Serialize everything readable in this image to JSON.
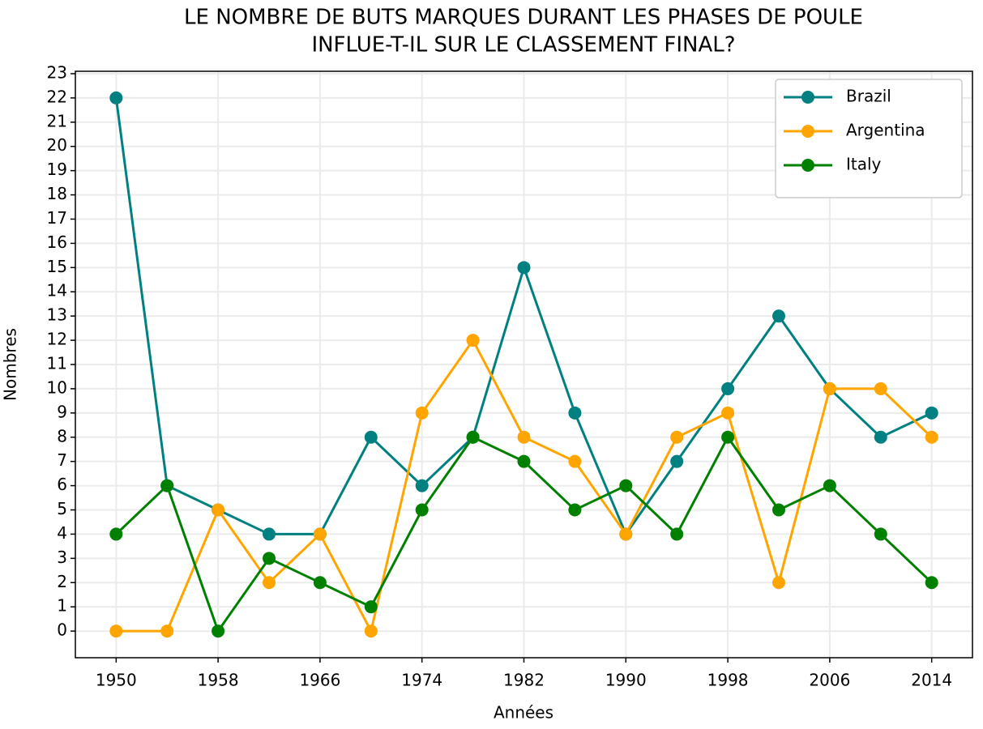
{
  "chart_data": {
    "type": "line",
    "title": [
      "LE NOMBRE DE BUTS MARQUES DURANT LES PHASES DE POULE",
      "INFLUE-T-IL SUR LE CLASSEMENT FINAL?"
    ],
    "x_label": "Années",
    "y_label": "Nombres",
    "x": [
      1950,
      1954,
      1958,
      1962,
      1966,
      1970,
      1974,
      1978,
      1982,
      1986,
      1990,
      1994,
      1998,
      2002,
      2006,
      2010,
      2014
    ],
    "series": [
      {
        "name": "Brazil",
        "color": "#008080",
        "values": [
          22,
          6,
          5,
          4,
          4,
          8,
          6,
          8,
          15,
          9,
          4,
          7,
          10,
          13,
          10,
          8,
          9
        ]
      },
      {
        "name": "Argentina",
        "color": "#ffa500",
        "values": [
          0,
          0,
          5,
          2,
          4,
          0,
          9,
          12,
          8,
          7,
          4,
          8,
          9,
          2,
          10,
          10,
          8
        ]
      },
      {
        "name": "Italy",
        "color": "#008000",
        "values": [
          4,
          6,
          0,
          3,
          2,
          1,
          5,
          8,
          7,
          5,
          6,
          4,
          8,
          5,
          6,
          4,
          2
        ]
      }
    ],
    "xlim": [
      1946.8,
      2017.2
    ],
    "ylim": [
      -1.1,
      23.1
    ],
    "xticks": [
      1950,
      1958,
      1966,
      1974,
      1982,
      1990,
      1998,
      2006,
      2014
    ],
    "yticks": [
      0,
      1,
      2,
      3,
      4,
      5,
      6,
      7,
      8,
      9,
      10,
      11,
      12,
      13,
      14,
      15,
      16,
      17,
      18,
      19,
      20,
      21,
      22,
      23
    ],
    "grid": true,
    "legend": "upper right"
  }
}
